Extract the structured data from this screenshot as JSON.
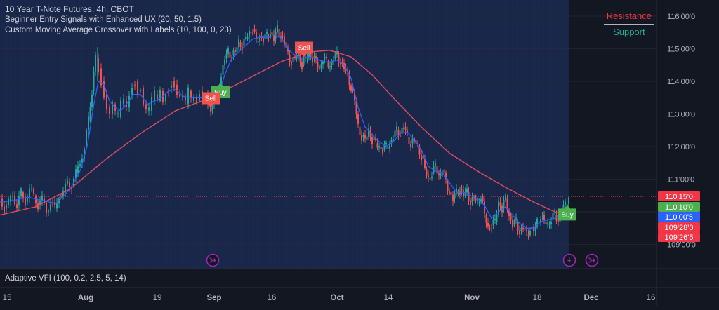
{
  "legend": {
    "title": "10 Year T-Note Futures, 4h, CBOT",
    "indicator1": "Beginner Entry Signals with Enhanced UX (20, 50, 1.5)",
    "indicator2": "Custom Moving Average Crossover with Labels (10, 100, 0, 23)"
  },
  "sr_legend": {
    "resistance": "Resistance",
    "support": "Support"
  },
  "bottom_pane": {
    "label": "Adaptive VFI (100, 0.2, 2.5, 5, 14)"
  },
  "colors": {
    "background": "#131722",
    "history_shade": "#18264a",
    "candle_up": "#26a69a",
    "candle_down": "#ef5350",
    "fast_ma": "#2962ff",
    "slow_ma": "#e04c5c",
    "buy_label": "#4caf50",
    "sell_label": "#ef5350",
    "event_icon": "#9c27b0"
  },
  "chart_data": {
    "type": "line",
    "title": "10 Year T-Note Futures, 4h, CBOT",
    "y_axis_ticks": [
      "109'00'0",
      "110'00'0",
      "111'00'0",
      "112'00'0",
      "113'00'0",
      "114'00'0",
      "115'00'0",
      "116'00'0"
    ],
    "ylim": [
      108.8,
      116.4
    ],
    "x_axis_ticks": [
      "15",
      "Aug",
      "19",
      "Sep",
      "16",
      "Oct",
      "14",
      "Nov",
      "18",
      "Dec",
      "16"
    ],
    "price_line": 110.47,
    "price_labels": [
      {
        "text": "110'15'0",
        "value": 110.47,
        "color": "#f23645"
      },
      {
        "text": "110'10'0",
        "value": 110.31,
        "color": "#4caf50"
      },
      {
        "text": "110'00'5",
        "value": 110.02,
        "color": "#2962ff"
      },
      {
        "text": "109'28'0",
        "value": 109.87,
        "color": "#f23645"
      },
      {
        "text": "109'26'5",
        "value": 109.83,
        "color": "#f23645"
      }
    ],
    "series": [
      {
        "name": "price",
        "points": [
          [
            0,
            110.4
          ],
          [
            6,
            110.1
          ],
          [
            12,
            110.3
          ],
          [
            18,
            110.5
          ],
          [
            24,
            110.2
          ],
          [
            30,
            110.6
          ],
          [
            36,
            110.3
          ],
          [
            42,
            110.7
          ],
          [
            48,
            110.5
          ],
          [
            54,
            110.2
          ],
          [
            60,
            110.4
          ],
          [
            66,
            110.0
          ],
          [
            72,
            110.3
          ],
          [
            78,
            110.1
          ],
          [
            84,
            110.5
          ],
          [
            90,
            110.6
          ],
          [
            96,
            110.9
          ],
          [
            102,
            110.8
          ],
          [
            108,
            111.2
          ],
          [
            114,
            111.5
          ],
          [
            120,
            112.0
          ],
          [
            126,
            112.8
          ],
          [
            131,
            113.7
          ],
          [
            136,
            114.7
          ],
          [
            140,
            114.4
          ],
          [
            144,
            114.0
          ],
          [
            148,
            113.6
          ],
          [
            152,
            113.2
          ],
          [
            156,
            113.0
          ],
          [
            160,
            113.3
          ],
          [
            164,
            113.0
          ],
          [
            168,
            112.9
          ],
          [
            172,
            113.3
          ],
          [
            176,
            113.4
          ],
          [
            180,
            113.2
          ],
          [
            184,
            113.6
          ],
          [
            188,
            113.9
          ],
          [
            192,
            114.0
          ],
          [
            196,
            113.7
          ],
          [
            200,
            113.8
          ],
          [
            204,
            113.3
          ],
          [
            208,
            113.1
          ],
          [
            212,
            113.1
          ],
          [
            216,
            113.4
          ],
          [
            220,
            113.6
          ],
          [
            224,
            113.4
          ],
          [
            228,
            113.7
          ],
          [
            232,
            113.4
          ],
          [
            236,
            113.7
          ],
          [
            240,
            113.8
          ],
          [
            244,
            114.0
          ],
          [
            248,
            113.9
          ],
          [
            252,
            113.6
          ],
          [
            256,
            113.5
          ],
          [
            260,
            113.5
          ],
          [
            264,
            113.3
          ],
          [
            268,
            113.7
          ],
          [
            272,
            113.4
          ],
          [
            276,
            113.5
          ],
          [
            280,
            113.4
          ],
          [
            284,
            113.7
          ],
          [
            288,
            113.5
          ],
          [
            292,
            113.6
          ],
          [
            296,
            113.4
          ],
          [
            300,
            113.1
          ],
          [
            305,
            113.3
          ],
          [
            310,
            113.6
          ],
          [
            315,
            114.2
          ],
          [
            320,
            114.7
          ],
          [
            325,
            114.9
          ],
          [
            330,
            114.8
          ],
          [
            335,
            114.9
          ],
          [
            340,
            115.2
          ],
          [
            345,
            115.1
          ],
          [
            350,
            115.3
          ],
          [
            355,
            115.5
          ],
          [
            360,
            115.6
          ],
          [
            365,
            115.2
          ],
          [
            370,
            115.4
          ],
          [
            375,
            115.3
          ],
          [
            380,
            115.4
          ],
          [
            385,
            115.5
          ],
          [
            390,
            115.3
          ],
          [
            395,
            115.6
          ],
          [
            400,
            115.4
          ],
          [
            405,
            115.2
          ],
          [
            410,
            114.8
          ],
          [
            415,
            114.6
          ],
          [
            420,
            114.7
          ],
          [
            425,
            114.9
          ],
          [
            430,
            114.5
          ],
          [
            435,
            114.7
          ],
          [
            440,
            114.9
          ],
          [
            445,
            114.7
          ],
          [
            450,
            114.6
          ],
          [
            455,
            114.4
          ],
          [
            460,
            114.7
          ],
          [
            465,
            114.6
          ],
          [
            470,
            114.5
          ],
          [
            475,
            114.7
          ],
          [
            480,
            114.8
          ],
          [
            485,
            114.6
          ],
          [
            490,
            114.4
          ],
          [
            495,
            114.2
          ],
          [
            500,
            113.8
          ],
          [
            505,
            113.4
          ],
          [
            510,
            112.6
          ],
          [
            515,
            112.3
          ],
          [
            520,
            112.2
          ],
          [
            525,
            112.5
          ],
          [
            530,
            112.2
          ],
          [
            535,
            112.1
          ],
          [
            540,
            112.0
          ],
          [
            545,
            111.9
          ],
          [
            550,
            112.0
          ],
          [
            555,
            112.1
          ],
          [
            560,
            112.3
          ],
          [
            565,
            112.5
          ],
          [
            570,
            112.4
          ],
          [
            575,
            112.6
          ],
          [
            580,
            112.3
          ],
          [
            585,
            112.1
          ],
          [
            590,
            112.2
          ],
          [
            595,
            112.0
          ],
          [
            600,
            111.7
          ],
          [
            605,
            111.3
          ],
          [
            610,
            111.0
          ],
          [
            615,
            111.2
          ],
          [
            620,
            111.4
          ],
          [
            625,
            111.1
          ],
          [
            630,
            111.3
          ],
          [
            635,
            110.9
          ],
          [
            640,
            110.6
          ],
          [
            645,
            110.4
          ],
          [
            650,
            110.6
          ],
          [
            655,
            110.7
          ],
          [
            660,
            110.5
          ],
          [
            665,
            110.6
          ],
          [
            670,
            110.3
          ],
          [
            675,
            110.4
          ],
          [
            680,
            110.3
          ],
          [
            685,
            110.5
          ],
          [
            690,
            109.9
          ],
          [
            695,
            109.5
          ],
          [
            700,
            109.6
          ],
          [
            705,
            109.7
          ],
          [
            710,
            110.3
          ],
          [
            715,
            110.1
          ],
          [
            720,
            110.4
          ],
          [
            725,
            109.9
          ],
          [
            730,
            109.6
          ],
          [
            735,
            109.7
          ],
          [
            740,
            109.4
          ],
          [
            745,
            109.5
          ],
          [
            750,
            109.3
          ],
          [
            755,
            109.5
          ],
          [
            760,
            109.4
          ],
          [
            765,
            109.7
          ],
          [
            770,
            109.9
          ],
          [
            775,
            109.7
          ],
          [
            780,
            109.6
          ],
          [
            785,
            109.8
          ],
          [
            790,
            109.9
          ],
          [
            795,
            109.7
          ],
          [
            800,
            110.0
          ],
          [
            805,
            110.2
          ],
          [
            810,
            110.47
          ]
        ]
      },
      {
        "name": "fast_ma",
        "points": [
          [
            0,
            110.3
          ],
          [
            20,
            110.35
          ],
          [
            40,
            110.45
          ],
          [
            60,
            110.35
          ],
          [
            80,
            110.25
          ],
          [
            100,
            110.7
          ],
          [
            115,
            111.3
          ],
          [
            125,
            112.1
          ],
          [
            133,
            113.2
          ],
          [
            140,
            114.0
          ],
          [
            148,
            113.9
          ],
          [
            156,
            113.4
          ],
          [
            164,
            113.2
          ],
          [
            172,
            113.1
          ],
          [
            180,
            113.3
          ],
          [
            190,
            113.6
          ],
          [
            200,
            113.6
          ],
          [
            210,
            113.3
          ],
          [
            220,
            113.4
          ],
          [
            230,
            113.5
          ],
          [
            240,
            113.7
          ],
          [
            250,
            113.75
          ],
          [
            260,
            113.55
          ],
          [
            270,
            113.5
          ],
          [
            280,
            113.5
          ],
          [
            290,
            113.5
          ],
          [
            300,
            113.35
          ],
          [
            310,
            113.5
          ],
          [
            320,
            114.2
          ],
          [
            330,
            114.7
          ],
          [
            340,
            114.9
          ],
          [
            350,
            115.1
          ],
          [
            360,
            115.3
          ],
          [
            370,
            115.35
          ],
          [
            380,
            115.35
          ],
          [
            390,
            115.4
          ],
          [
            400,
            115.35
          ],
          [
            410,
            115.0
          ],
          [
            420,
            114.8
          ],
          [
            430,
            114.7
          ],
          [
            440,
            114.75
          ],
          [
            450,
            114.7
          ],
          [
            460,
            114.6
          ],
          [
            470,
            114.6
          ],
          [
            480,
            114.65
          ],
          [
            490,
            114.5
          ],
          [
            500,
            114.1
          ],
          [
            510,
            113.2
          ],
          [
            520,
            112.6
          ],
          [
            530,
            112.35
          ],
          [
            540,
            112.15
          ],
          [
            550,
            112.0
          ],
          [
            560,
            112.15
          ],
          [
            570,
            112.4
          ],
          [
            580,
            112.45
          ],
          [
            590,
            112.2
          ],
          [
            600,
            111.9
          ],
          [
            610,
            111.4
          ],
          [
            620,
            111.25
          ],
          [
            630,
            111.2
          ],
          [
            640,
            110.9
          ],
          [
            650,
            110.6
          ],
          [
            660,
            110.6
          ],
          [
            670,
            110.5
          ],
          [
            680,
            110.4
          ],
          [
            690,
            110.2
          ],
          [
            700,
            109.8
          ],
          [
            710,
            110.0
          ],
          [
            720,
            110.15
          ],
          [
            730,
            109.9
          ],
          [
            740,
            109.65
          ],
          [
            750,
            109.5
          ],
          [
            760,
            109.5
          ],
          [
            770,
            109.7
          ],
          [
            780,
            109.75
          ],
          [
            790,
            109.8
          ],
          [
            800,
            109.9
          ],
          [
            810,
            110.02
          ]
        ]
      },
      {
        "name": "slow_ma",
        "points": [
          [
            0,
            109.9
          ],
          [
            50,
            110.15
          ],
          [
            100,
            110.7
          ],
          [
            150,
            111.6
          ],
          [
            200,
            112.4
          ],
          [
            250,
            113.1
          ],
          [
            300,
            113.5
          ],
          [
            350,
            114.05
          ],
          [
            400,
            114.6
          ],
          [
            440,
            114.9
          ],
          [
            470,
            114.95
          ],
          [
            500,
            114.75
          ],
          [
            530,
            114.2
          ],
          [
            560,
            113.5
          ],
          [
            600,
            112.6
          ],
          [
            640,
            111.8
          ],
          [
            680,
            111.25
          ],
          [
            720,
            110.75
          ],
          [
            760,
            110.3
          ],
          [
            790,
            110.0
          ],
          [
            810,
            109.87
          ]
        ]
      }
    ],
    "annotations": [
      {
        "text": "Buy",
        "x": 314,
        "y": 113.85,
        "kind": "buy"
      },
      {
        "text": "Sell",
        "x": 300,
        "y": 113.3,
        "kind": "sell"
      },
      {
        "text": "Sell",
        "x": 433,
        "y": 114.85,
        "kind": "sell"
      },
      {
        "text": "Buy",
        "x": 808,
        "y": 110.1,
        "kind": "buy"
      }
    ],
    "events": [
      {
        "x": 303,
        "icon": "split-arrow"
      },
      {
        "x": 811,
        "icon": "lightning"
      },
      {
        "x": 843,
        "icon": "split-arrow"
      }
    ]
  }
}
